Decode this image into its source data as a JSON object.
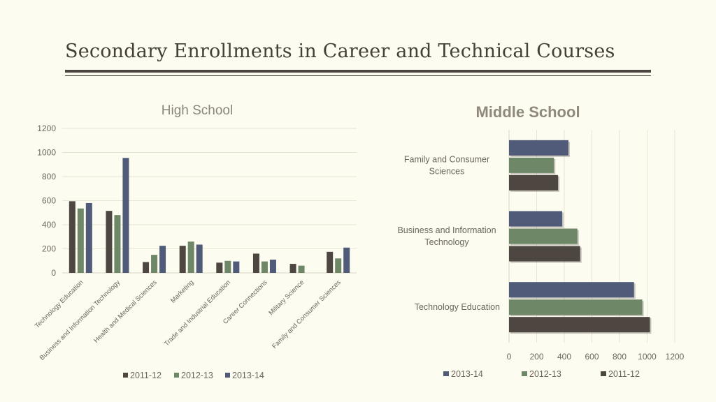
{
  "page": {
    "title": "Secondary Enrollments in Career and Technical Courses"
  },
  "colors": {
    "s2011": "#4e4640",
    "s2012": "#6e8767",
    "s2013": "#4f5b78",
    "grid": "#e7e5d4",
    "text": "#6a665c"
  },
  "chart_data": [
    {
      "type": "bar",
      "title": "High School",
      "categories": [
        "Technology Education",
        "Business and Information Technology",
        "Health and Medical Sciences",
        "Marketing",
        "Trade and Industrial Education",
        "Career Connections",
        "Military Science",
        "Family and Consumer Sciences"
      ],
      "series": [
        {
          "name": "2011-12",
          "color": "#4e4640",
          "values": [
            595,
            515,
            90,
            225,
            85,
            160,
            75,
            175
          ]
        },
        {
          "name": "2012-13",
          "color": "#6e8767",
          "values": [
            535,
            480,
            150,
            260,
            100,
            95,
            60,
            120
          ]
        },
        {
          "name": "2013-14",
          "color": "#4f5b78",
          "values": [
            580,
            955,
            225,
            235,
            95,
            110,
            0,
            210
          ]
        }
      ],
      "ylim": [
        0,
        1200
      ],
      "yticks": [
        0,
        200,
        400,
        600,
        800,
        1000,
        1200
      ],
      "grid": true,
      "legend": "bottom"
    },
    {
      "type": "bar",
      "orientation": "horizontal",
      "title": "Middle School",
      "categories": [
        "Technology Education",
        "Business and Information Technology",
        "Family and Consumer Sciences"
      ],
      "series": [
        {
          "name": "2011-12",
          "color": "#4e4640",
          "values": [
            1020,
            515,
            355
          ]
        },
        {
          "name": "2012-13",
          "color": "#6e8767",
          "values": [
            965,
            495,
            325
          ]
        },
        {
          "name": "2013-14",
          "color": "#4f5b78",
          "values": [
            905,
            385,
            430
          ]
        }
      ],
      "legend_order": [
        "2013-14",
        "2012-13",
        "2011-12"
      ],
      "xlim": [
        0,
        1200
      ],
      "xticks": [
        0,
        200,
        400,
        600,
        800,
        1000,
        1200
      ],
      "grid": true,
      "legend": "bottom"
    }
  ]
}
